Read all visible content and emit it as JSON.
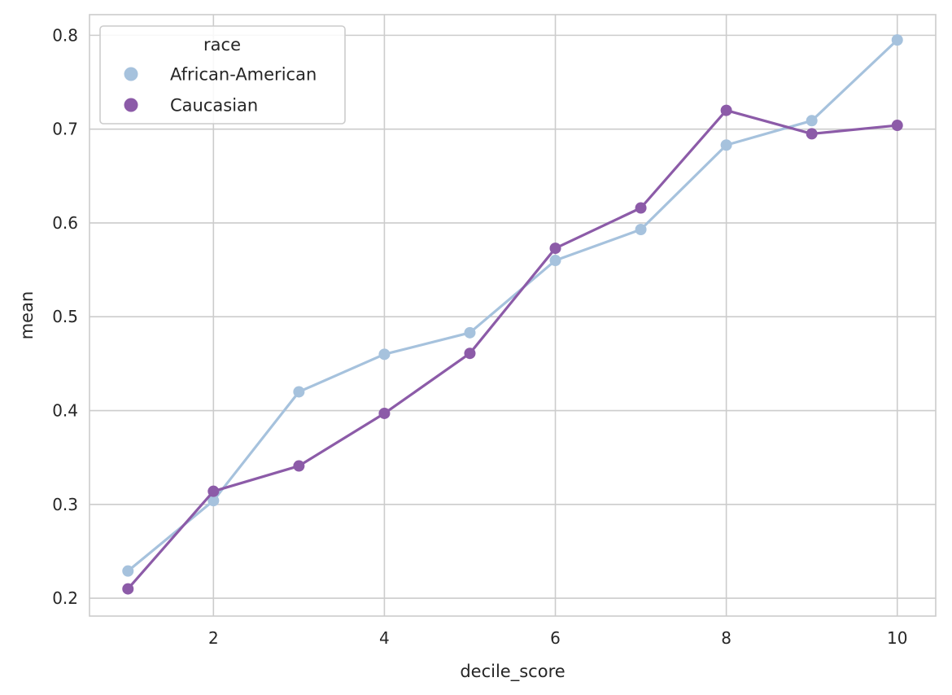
{
  "chart_data": {
    "type": "line",
    "xlabel": "decile_score",
    "ylabel": "mean",
    "x": [
      1,
      2,
      3,
      4,
      5,
      6,
      7,
      8,
      9,
      10
    ],
    "xlim": [
      0.55,
      10.45
    ],
    "ylim": [
      0.181,
      0.822
    ],
    "x_ticks": [
      2,
      4,
      6,
      8,
      10
    ],
    "x_tick_labels": [
      "2",
      "4",
      "6",
      "8",
      "10"
    ],
    "y_ticks": [
      0.2,
      0.3,
      0.4,
      0.5,
      0.6,
      0.7,
      0.8
    ],
    "y_tick_labels": [
      "0.2",
      "0.3",
      "0.4",
      "0.5",
      "0.6",
      "0.7",
      "0.8"
    ],
    "grid": true,
    "legend": {
      "title": "race",
      "position": "upper-left"
    },
    "series": [
      {
        "name": "African-American",
        "color": "#a6c2dd",
        "values": [
          0.229,
          0.304,
          0.42,
          0.46,
          0.483,
          0.56,
          0.593,
          0.683,
          0.709,
          0.795
        ]
      },
      {
        "name": "Caucasian",
        "color": "#8c5ba8",
        "values": [
          0.21,
          0.314,
          0.341,
          0.397,
          0.461,
          0.573,
          0.616,
          0.72,
          0.695,
          0.704
        ]
      }
    ]
  }
}
